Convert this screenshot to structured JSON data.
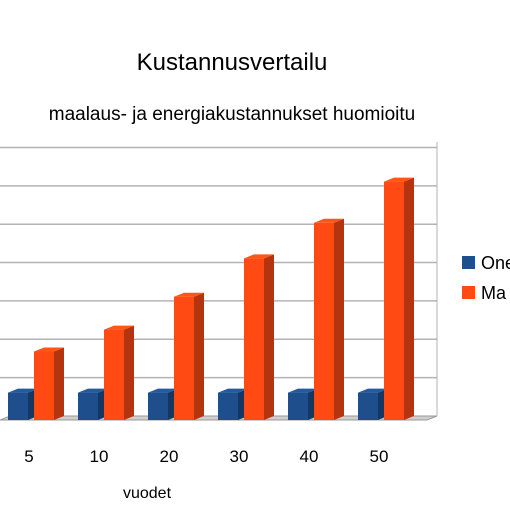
{
  "chart_data": {
    "type": "bar",
    "title": "Kustannusvertailu",
    "subtitle": "maalaus- ja energiakustannukset huomioitu",
    "xlabel": "vuodet",
    "ylabel": "",
    "categories": [
      "5",
      "10",
      "20",
      "30",
      "40",
      "50"
    ],
    "series": [
      {
        "name": "One",
        "values": [
          1,
          1,
          1,
          1,
          1,
          1
        ],
        "color": "#1f4e8c"
      },
      {
        "name": "Ma",
        "values": [
          2.5,
          3.3,
          4.5,
          5.9,
          7.2,
          8.7
        ],
        "color": "#ff4a14"
      }
    ],
    "ylim": [
      0,
      10
    ],
    "grid": true,
    "legend_position": "right",
    "style": "3d"
  }
}
